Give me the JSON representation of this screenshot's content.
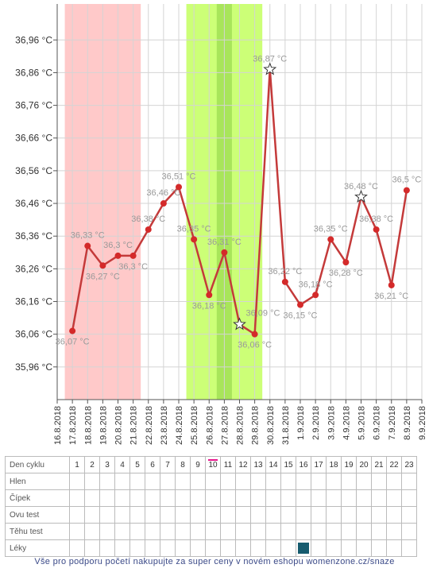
{
  "chart_data": {
    "type": "line",
    "x": [
      "16.8.2018",
      "17.8.2018",
      "18.8.2018",
      "19.8.2018",
      "20.8.2018",
      "21.8.2018",
      "22.8.2018",
      "23.8.2018",
      "24.8.2018",
      "25.8.2018",
      "26.8.2018",
      "27.8.2018",
      "28.8.2018",
      "29.8.2018",
      "30.8.2018",
      "31.8.2018",
      "1.9.2018",
      "2.9.2018",
      "3.9.2018",
      "4.9.2018",
      "5.9.2018",
      "6.9.2018",
      "7.9.2018",
      "8.9.2018",
      "9.9.2018"
    ],
    "y_tick_labels": [
      "35,96 °C",
      "36,06 °C",
      "36,16 °C",
      "36,26 °C",
      "36,36 °C",
      "36,46 °C",
      "36,56 °C",
      "36,66 °C",
      "36,76 °C",
      "36,86 °C",
      "36,96 °C"
    ],
    "y_ticks": [
      35.96,
      36.06,
      36.16,
      36.26,
      36.36,
      36.46,
      36.56,
      36.66,
      36.76,
      36.86,
      36.96
    ],
    "ylim": [
      35.86,
      37.07
    ],
    "series": [
      {
        "color": "#c43a3a",
        "points": [
          {
            "x": "17.8.2018",
            "y": 36.07,
            "label": "36,07 °C",
            "marker": "dot",
            "label_pos": "below"
          },
          {
            "x": "18.8.2018",
            "y": 36.33,
            "label": "36,33 °C",
            "marker": "dot",
            "label_pos": "above"
          },
          {
            "x": "19.8.2018",
            "y": 36.27,
            "label": "36,27 °C",
            "marker": "dot",
            "label_pos": "below"
          },
          {
            "x": "20.8.2018",
            "y": 36.3,
            "label": "36,3 °C",
            "marker": "dot",
            "label_pos": "above"
          },
          {
            "x": "21.8.2018",
            "y": 36.3,
            "label": "36,3 °C",
            "marker": "dot",
            "label_pos": "below"
          },
          {
            "x": "22.8.2018",
            "y": 36.38,
            "label": "36,38 °C",
            "marker": "dot",
            "label_pos": "above"
          },
          {
            "x": "23.8.2018",
            "y": 36.46,
            "label": "36,46 °C",
            "marker": "dot",
            "label_pos": "above"
          },
          {
            "x": "24.8.2018",
            "y": 36.51,
            "label": "36,51 °C",
            "marker": "dot",
            "label_pos": "above"
          },
          {
            "x": "25.8.2018",
            "y": 36.35,
            "label": "36,35 °C",
            "marker": "dot",
            "label_pos": "above"
          },
          {
            "x": "26.8.2018",
            "y": 36.18,
            "label": "36,18 °C",
            "marker": "dot",
            "label_pos": "below"
          },
          {
            "x": "27.8.2018",
            "y": 36.31,
            "label": "36,31 °C",
            "marker": "dot",
            "label_pos": "above"
          },
          {
            "x": "28.8.2018",
            "y": 36.09,
            "label": "36,09 °C",
            "marker": "star",
            "label_pos": "above-right"
          },
          {
            "x": "29.8.2018",
            "y": 36.06,
            "label": "36,06 °C",
            "marker": "dot",
            "label_pos": "below"
          },
          {
            "x": "30.8.2018",
            "y": 36.87,
            "label": "36,87 °C",
            "marker": "star",
            "label_pos": "above"
          },
          {
            "x": "31.8.2018",
            "y": 36.22,
            "label": "36,22 °C",
            "marker": "dot",
            "label_pos": "above"
          },
          {
            "x": "1.9.2018",
            "y": 36.15,
            "label": "36,15 °C",
            "marker": "dot",
            "label_pos": "below"
          },
          {
            "x": "2.9.2018",
            "y": 36.18,
            "label": "36,18 °C",
            "marker": "dot",
            "label_pos": "above"
          },
          {
            "x": "3.9.2018",
            "y": 36.35,
            "label": "36,35 °C",
            "marker": "dot",
            "label_pos": "above"
          },
          {
            "x": "4.9.2018",
            "y": 36.28,
            "label": "36,28 °C",
            "marker": "dot",
            "label_pos": "below"
          },
          {
            "x": "5.9.2018",
            "y": 36.48,
            "label": "36,48 °C",
            "marker": "star",
            "label_pos": "above"
          },
          {
            "x": "6.9.2018",
            "y": 36.38,
            "label": "36,38 °C",
            "marker": "dot",
            "label_pos": "above"
          },
          {
            "x": "7.9.2018",
            "y": 36.21,
            "label": "36,21 °C",
            "marker": "dot",
            "label_pos": "below"
          },
          {
            "x": "8.9.2018",
            "y": 36.5,
            "label": "36,5 °C",
            "marker": "dot",
            "label_pos": "above"
          }
        ]
      }
    ],
    "bands": [
      {
        "from": "17.8.2018",
        "to": "21.8.2018",
        "color": "#ffc9c9"
      },
      {
        "from": "25.8.2018",
        "to": "29.8.2018",
        "color": "#ccff77"
      },
      {
        "from": "27.8.2018",
        "to": "27.8.2018",
        "color": "#a8e55a"
      }
    ],
    "grid": true,
    "legend": "none"
  },
  "table": {
    "day_row_label": "Den cyklu",
    "days": [
      "1",
      "2",
      "3",
      "4",
      "5",
      "6",
      "7",
      "8",
      "9",
      "10",
      "11",
      "12",
      "13",
      "14",
      "15",
      "16",
      "17",
      "18",
      "19",
      "20",
      "21",
      "22",
      "23"
    ],
    "today_day": "10",
    "rows": [
      {
        "label": "Hlen"
      },
      {
        "label": "Čípek"
      },
      {
        "label": "Ovu test"
      },
      {
        "label": "Těhu test"
      },
      {
        "label": "Léky",
        "marker_day": "16",
        "marker_color": "#165b6e"
      }
    ]
  },
  "footer": "Vše pro podporu početí nakupujte za super ceny v novém eshopu womenzone.cz/snaze"
}
